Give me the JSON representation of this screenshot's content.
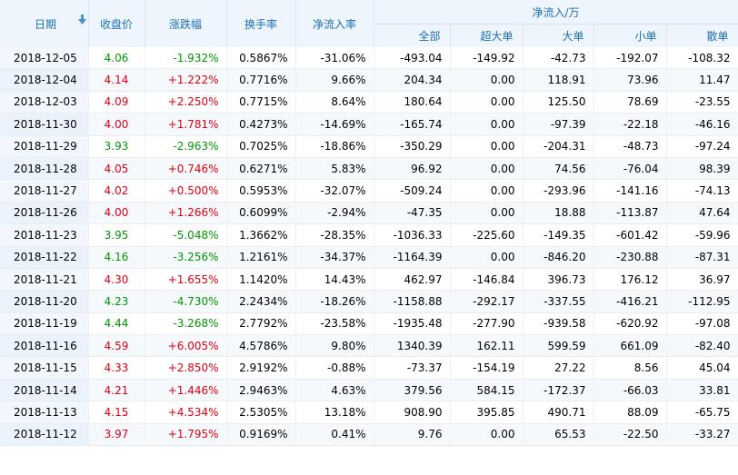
{
  "headers": {
    "date": "日期",
    "close": "收盘价",
    "change": "涨跌幅",
    "turnover": "换手率",
    "netflow_rate": "净流入率",
    "group": "净流入/万",
    "all": "全部",
    "super": "超大单",
    "big": "大单",
    "small": "小单",
    "retail": "散单"
  },
  "colors": {
    "up": "#e60012",
    "down": "#009900",
    "header_text": "#1f6fb5"
  },
  "rows": [
    {
      "date": "2018-12-05",
      "close": "4.06",
      "change": "-1.932%",
      "turnover": "0.5867%",
      "rate": "-31.06%",
      "all": "-493.04",
      "super": "-149.92",
      "big": "-42.73",
      "small": "-192.07",
      "retail": "-108.32",
      "dir": "down"
    },
    {
      "date": "2018-12-04",
      "close": "4.14",
      "change": "+1.222%",
      "turnover": "0.7716%",
      "rate": "9.66%",
      "all": "204.34",
      "super": "0.00",
      "big": "118.91",
      "small": "73.96",
      "retail": "11.47",
      "dir": "up"
    },
    {
      "date": "2018-12-03",
      "close": "4.09",
      "change": "+2.250%",
      "turnover": "0.7715%",
      "rate": "8.64%",
      "all": "180.64",
      "super": "0.00",
      "big": "125.50",
      "small": "78.69",
      "retail": "-23.55",
      "dir": "up"
    },
    {
      "date": "2018-11-30",
      "close": "4.00",
      "change": "+1.781%",
      "turnover": "0.4273%",
      "rate": "-14.69%",
      "all": "-165.74",
      "super": "0.00",
      "big": "-97.39",
      "small": "-22.18",
      "retail": "-46.16",
      "dir": "up"
    },
    {
      "date": "2018-11-29",
      "close": "3.93",
      "change": "-2.963%",
      "turnover": "0.7025%",
      "rate": "-18.86%",
      "all": "-350.29",
      "super": "0.00",
      "big": "-204.31",
      "small": "-48.73",
      "retail": "-97.24",
      "dir": "down"
    },
    {
      "date": "2018-11-28",
      "close": "4.05",
      "change": "+0.746%",
      "turnover": "0.6271%",
      "rate": "5.83%",
      "all": "96.92",
      "super": "0.00",
      "big": "74.56",
      "small": "-76.04",
      "retail": "98.39",
      "dir": "up"
    },
    {
      "date": "2018-11-27",
      "close": "4.02",
      "change": "+0.500%",
      "turnover": "0.5953%",
      "rate": "-32.07%",
      "all": "-509.24",
      "super": "0.00",
      "big": "-293.96",
      "small": "-141.16",
      "retail": "-74.13",
      "dir": "up"
    },
    {
      "date": "2018-11-26",
      "close": "4.00",
      "change": "+1.266%",
      "turnover": "0.6099%",
      "rate": "-2.94%",
      "all": "-47.35",
      "super": "0.00",
      "big": "18.88",
      "small": "-113.87",
      "retail": "47.64",
      "dir": "up"
    },
    {
      "date": "2018-11-23",
      "close": "3.95",
      "change": "-5.048%",
      "turnover": "1.3662%",
      "rate": "-28.35%",
      "all": "-1036.33",
      "super": "-225.60",
      "big": "-149.35",
      "small": "-601.42",
      "retail": "-59.96",
      "dir": "down"
    },
    {
      "date": "2018-11-22",
      "close": "4.16",
      "change": "-3.256%",
      "turnover": "1.2161%",
      "rate": "-34.37%",
      "all": "-1164.39",
      "super": "0.00",
      "big": "-846.20",
      "small": "-230.88",
      "retail": "-87.31",
      "dir": "down"
    },
    {
      "date": "2018-11-21",
      "close": "4.30",
      "change": "+1.655%",
      "turnover": "1.1420%",
      "rate": "14.43%",
      "all": "462.97",
      "super": "-146.84",
      "big": "396.73",
      "small": "176.12",
      "retail": "36.97",
      "dir": "up"
    },
    {
      "date": "2018-11-20",
      "close": "4.23",
      "change": "-4.730%",
      "turnover": "2.2434%",
      "rate": "-18.26%",
      "all": "-1158.88",
      "super": "-292.17",
      "big": "-337.55",
      "small": "-416.21",
      "retail": "-112.95",
      "dir": "down"
    },
    {
      "date": "2018-11-19",
      "close": "4.44",
      "change": "-3.268%",
      "turnover": "2.7792%",
      "rate": "-23.58%",
      "all": "-1935.48",
      "super": "-277.90",
      "big": "-939.58",
      "small": "-620.92",
      "retail": "-97.08",
      "dir": "down"
    },
    {
      "date": "2018-11-16",
      "close": "4.59",
      "change": "+6.005%",
      "turnover": "4.5786%",
      "rate": "9.80%",
      "all": "1340.39",
      "super": "162.11",
      "big": "599.59",
      "small": "661.09",
      "retail": "-82.40",
      "dir": "up"
    },
    {
      "date": "2018-11-15",
      "close": "4.33",
      "change": "+2.850%",
      "turnover": "2.9192%",
      "rate": "-0.88%",
      "all": "-73.37",
      "super": "-154.19",
      "big": "27.22",
      "small": "8.56",
      "retail": "45.04",
      "dir": "up"
    },
    {
      "date": "2018-11-14",
      "close": "4.21",
      "change": "+1.446%",
      "turnover": "2.9463%",
      "rate": "4.63%",
      "all": "379.56",
      "super": "584.15",
      "big": "-172.37",
      "small": "-66.03",
      "retail": "33.81",
      "dir": "up"
    },
    {
      "date": "2018-11-13",
      "close": "4.15",
      "change": "+4.534%",
      "turnover": "2.5305%",
      "rate": "13.18%",
      "all": "908.90",
      "super": "395.85",
      "big": "490.71",
      "small": "88.09",
      "retail": "-65.75",
      "dir": "up"
    },
    {
      "date": "2018-11-12",
      "close": "3.97",
      "change": "+1.795%",
      "turnover": "0.9169%",
      "rate": "0.41%",
      "all": "9.76",
      "super": "0.00",
      "big": "65.53",
      "small": "-22.50",
      "retail": "-33.27",
      "dir": "up"
    }
  ]
}
